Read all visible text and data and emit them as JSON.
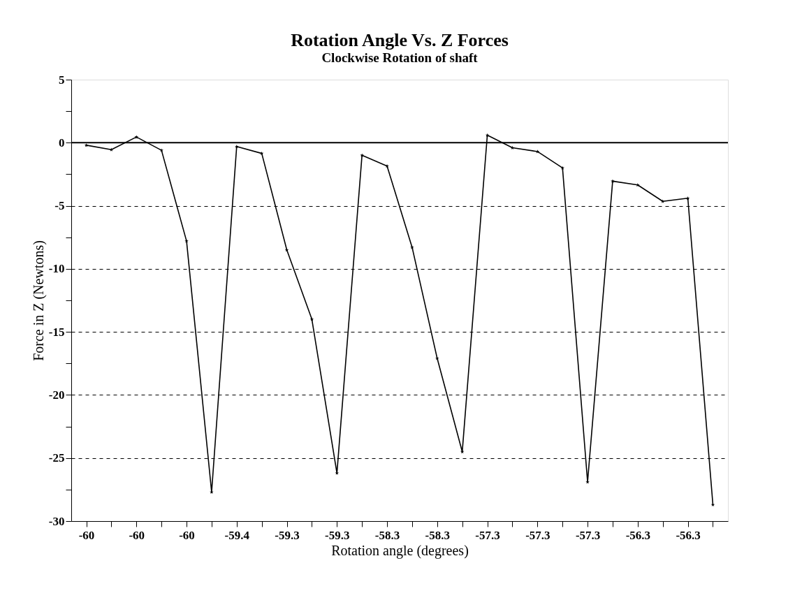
{
  "chart_data": {
    "type": "line",
    "title": "Rotation Angle Vs. Z Forces",
    "subtitle": "Clockwise Rotation of shaft",
    "xlabel": "Rotation angle (degrees)",
    "ylabel": "Force in Z (Newtons)",
    "categories": [
      "-60",
      null,
      "-60",
      null,
      "-60",
      null,
      "-59.4",
      null,
      "-59.3",
      null,
      "-59.3",
      null,
      "-58.3",
      null,
      "-58.3",
      null,
      "-57.3",
      null,
      "-57.3",
      null,
      "-57.3",
      null,
      "-56.3",
      null,
      "-56.3",
      null
    ],
    "series": [
      {
        "color": "#000000",
        "values": [
          -0.2,
          -0.55,
          0.45,
          -0.6,
          -7.8,
          -27.7,
          -0.3,
          -0.85,
          -8.5,
          -14,
          -26.2,
          -1.0,
          -1.85,
          -8.3,
          -17.1,
          -24.5,
          0.6,
          -0.4,
          -0.7,
          -2.0,
          -26.9,
          -3.05,
          -3.35,
          -4.65,
          -4.4,
          -28.7
        ]
      }
    ],
    "ylim": [
      -30,
      5
    ],
    "yticks": [
      -30,
      {
        "value": -27.5,
        "label": null
      },
      -25,
      {
        "value": -22.5,
        "label": null
      },
      -20,
      {
        "value": -17.5,
        "label": null
      },
      -15,
      {
        "value": -12.5,
        "label": null
      },
      -10,
      {
        "value": -7.5,
        "label": null
      },
      -5,
      {
        "value": -2.5,
        "label": null
      },
      0,
      {
        "value": 2.5,
        "label": null
      },
      5
    ],
    "grid": "y",
    "marker": "star",
    "line_style": "solid",
    "ref_lines": [
      {
        "axis": "y",
        "value": 0,
        "color": "#000000",
        "line_style": "solid"
      }
    ]
  }
}
